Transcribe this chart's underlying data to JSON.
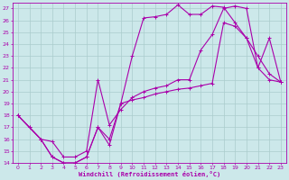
{
  "xlabel": "Windchill (Refroidissement éolien,°C)",
  "xlim": [
    -0.5,
    23.5
  ],
  "ylim": [
    14,
    27.5
  ],
  "xticks": [
    0,
    1,
    2,
    3,
    4,
    5,
    6,
    7,
    8,
    9,
    10,
    11,
    12,
    13,
    14,
    15,
    16,
    17,
    18,
    19,
    20,
    21,
    22,
    23
  ],
  "yticks": [
    14,
    15,
    16,
    17,
    18,
    19,
    20,
    21,
    22,
    23,
    24,
    25,
    26,
    27
  ],
  "background_color": "#cce8ea",
  "grid_color": "#aacccc",
  "line_color": "#aa00aa",
  "curve1_x": [
    0,
    1,
    2,
    3,
    4,
    5,
    6,
    7,
    8,
    9,
    10,
    11,
    12,
    13,
    14,
    15,
    16,
    17,
    18,
    19,
    20,
    21,
    22,
    23
  ],
  "curve1_y": [
    18.0,
    17.0,
    16.0,
    14.5,
    14.0,
    14.0,
    14.5,
    17.0,
    15.5,
    19.0,
    23.0,
    26.2,
    26.3,
    26.5,
    27.3,
    26.5,
    26.5,
    27.2,
    27.1,
    25.8,
    24.5,
    22.0,
    21.0,
    20.8
  ],
  "curve2_x": [
    0,
    1,
    2,
    3,
    4,
    5,
    6,
    7,
    8,
    9,
    10,
    11,
    12,
    13,
    14,
    15,
    16,
    17,
    18,
    19,
    20,
    21,
    22,
    23
  ],
  "curve2_y": [
    18.0,
    17.0,
    16.0,
    14.5,
    14.0,
    14.0,
    14.5,
    17.0,
    16.0,
    19.0,
    19.3,
    19.5,
    19.8,
    20.0,
    20.2,
    20.3,
    20.5,
    20.7,
    25.8,
    25.5,
    24.5,
    23.0,
    21.5,
    20.8
  ],
  "curve3_x": [
    0,
    2,
    3,
    4,
    5,
    6,
    7,
    8,
    9,
    10,
    11,
    12,
    13,
    14,
    15,
    16,
    17,
    18,
    19,
    20,
    21,
    22,
    23
  ],
  "curve3_y": [
    18.0,
    16.0,
    15.8,
    14.5,
    14.5,
    15.0,
    21.0,
    17.2,
    18.5,
    19.5,
    20.0,
    20.3,
    20.5,
    21.0,
    21.0,
    23.5,
    24.8,
    27.0,
    27.2,
    27.0,
    22.0,
    24.5,
    20.8
  ]
}
